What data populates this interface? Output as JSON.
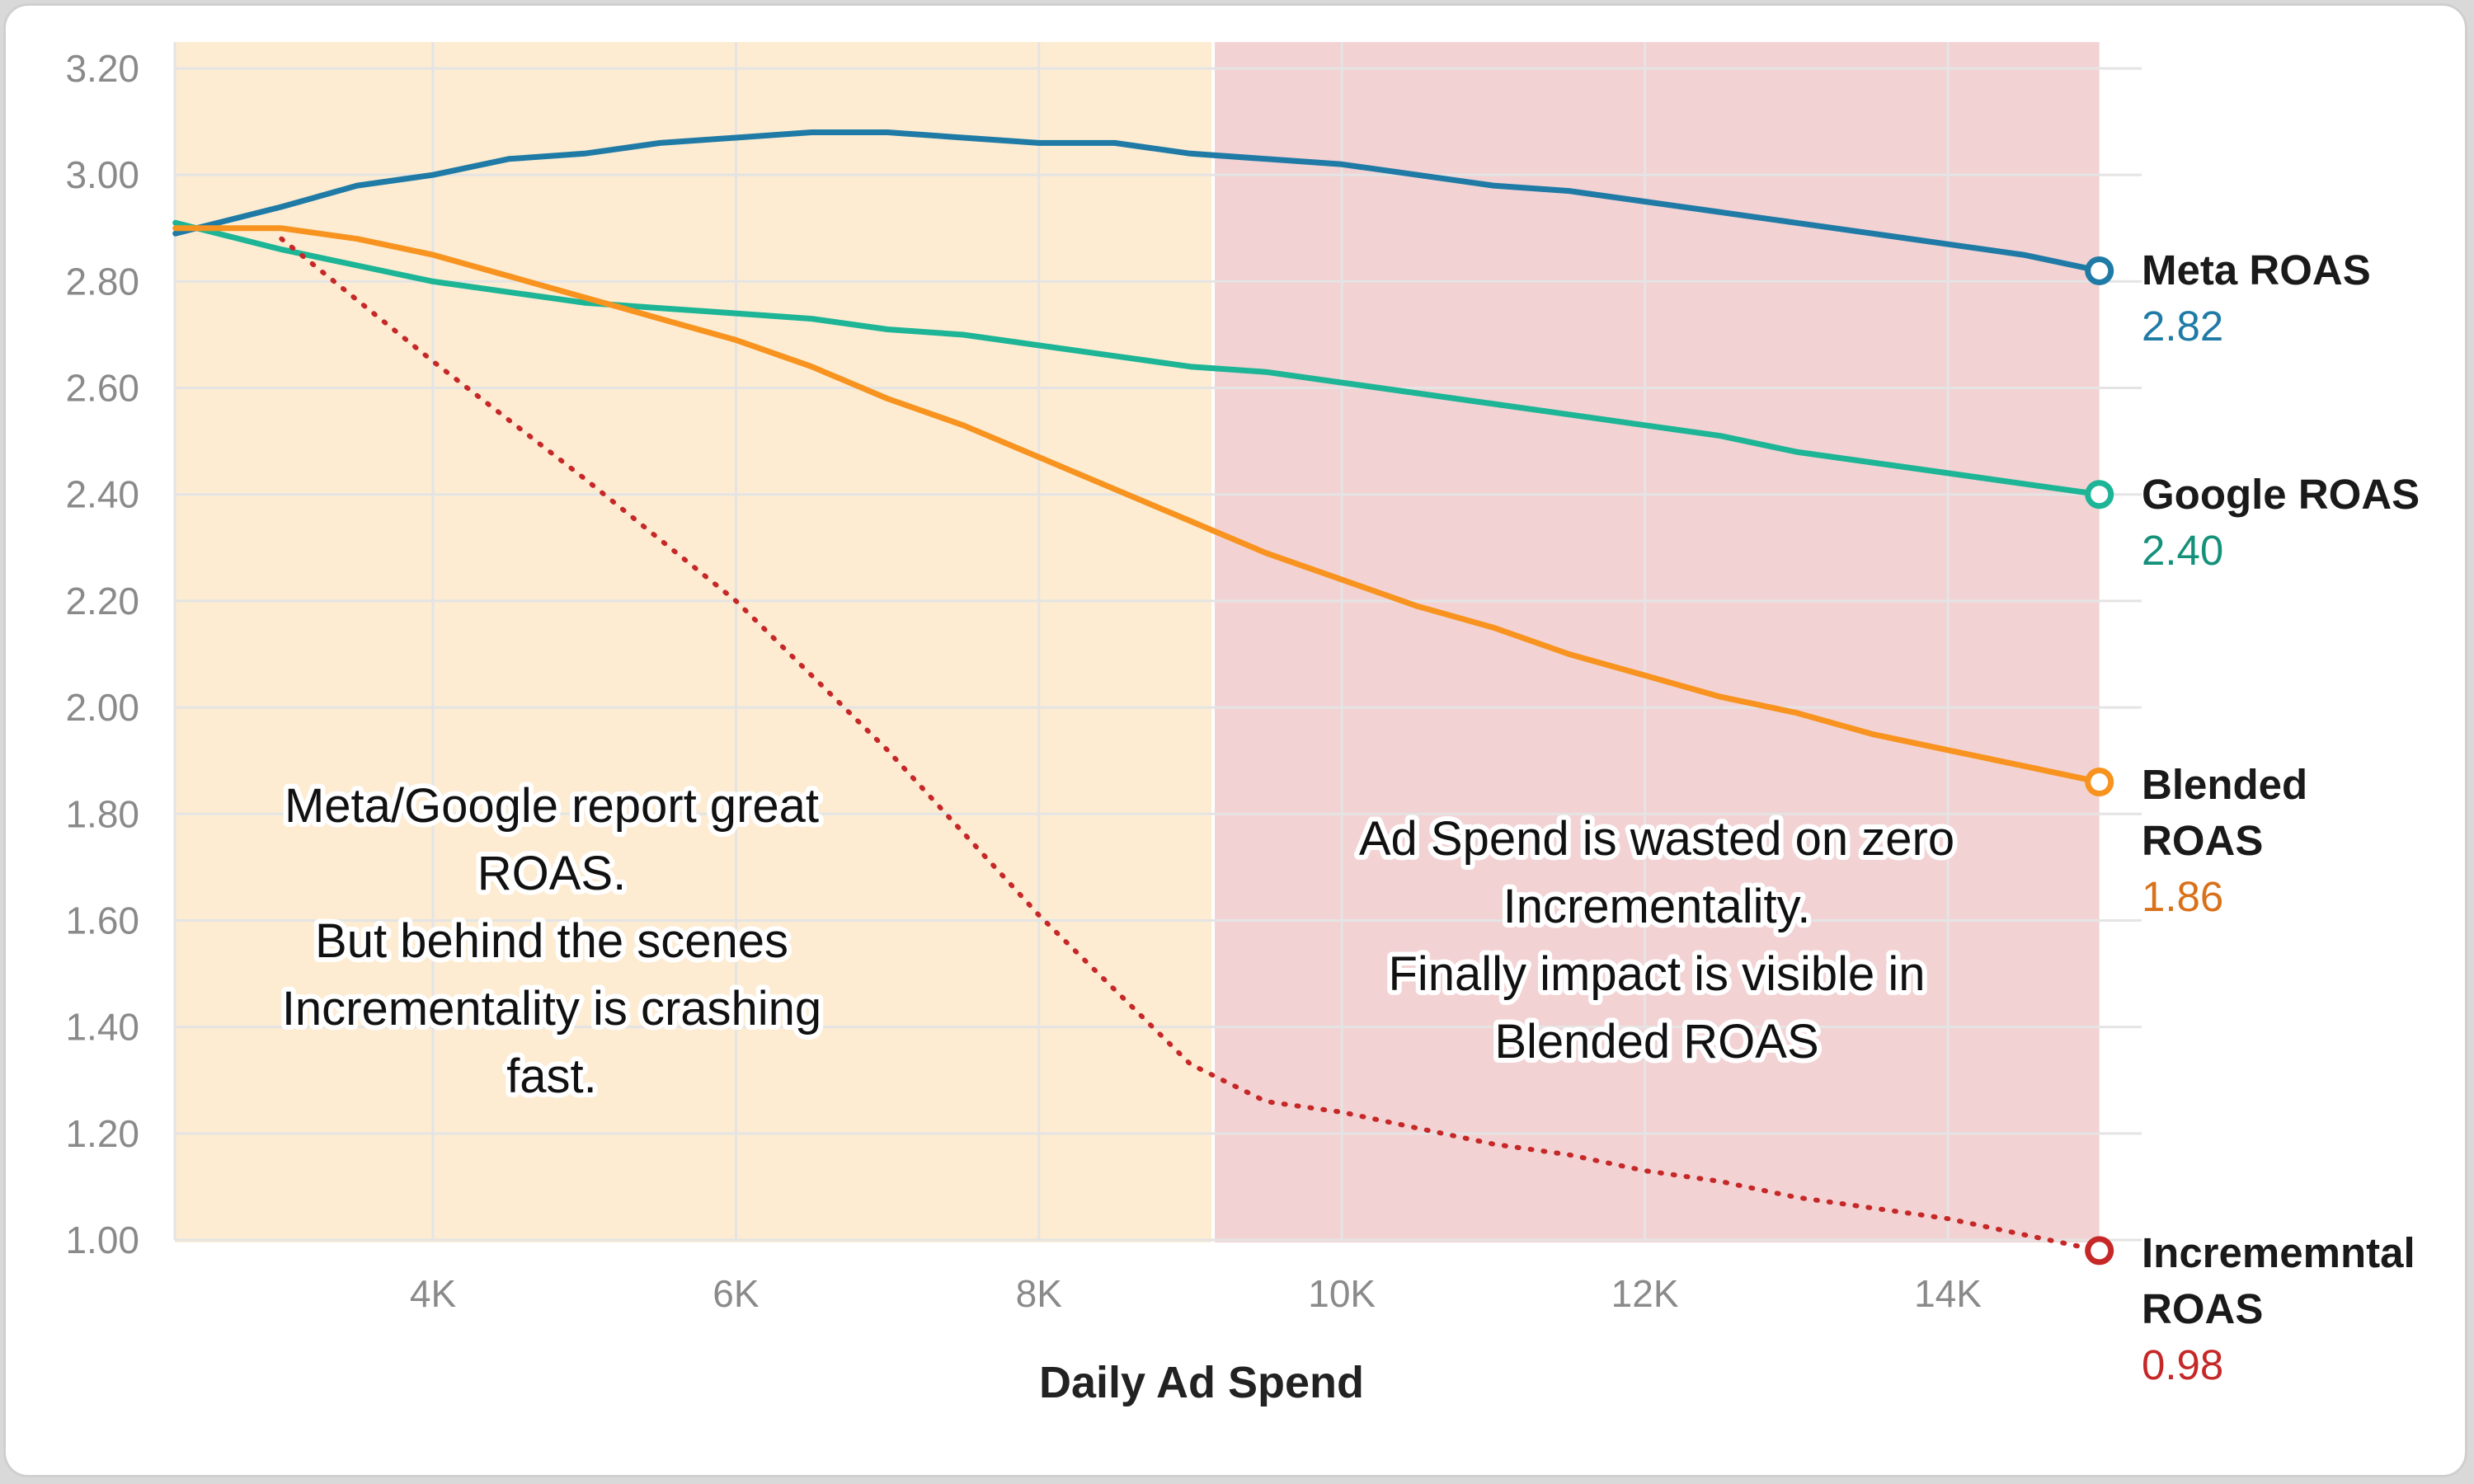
{
  "chart_data": {
    "type": "line",
    "title": "",
    "xlabel": "Daily Ad Spend",
    "ylabel": "",
    "xlim": [
      2100,
      15650
    ],
    "ylim": [
      1.0,
      3.2
    ],
    "yticks": [
      "1.00",
      "1.20",
      "1.40",
      "1.60",
      "1.80",
      "2.00",
      "2.20",
      "2.40",
      "2.60",
      "2.80",
      "3.00",
      "3.20"
    ],
    "ytick_values": [
      1.0,
      1.2,
      1.4,
      1.6,
      1.8,
      2.0,
      2.2,
      2.4,
      2.6,
      2.8,
      3.0,
      3.2
    ],
    "xticks": [
      "4K",
      "6K",
      "8K",
      "10K",
      "12K",
      "14K"
    ],
    "xtick_values": [
      4000,
      6000,
      8000,
      10000,
      12000,
      14000
    ],
    "grid": true,
    "regions": [
      {
        "name": "safe-zone",
        "x_from": 2100,
        "x_to": 9150,
        "color": "#fdecd2"
      },
      {
        "name": "waste-zone",
        "x_from": 9150,
        "x_to": 15000,
        "color": "#f3d2d3"
      }
    ],
    "series": [
      {
        "key": "meta",
        "name_lines": [
          "Meta ROAS"
        ],
        "end_label": "2.82",
        "color": "#1f7ba6",
        "value_color": "#1f7ba6",
        "dash": "solid",
        "x": [
          2300,
          3000,
          3500,
          4000,
          4500,
          5000,
          5500,
          6000,
          6500,
          7000,
          7500,
          8000,
          8500,
          9000,
          9500,
          10000,
          10500,
          11000,
          11500,
          12000,
          12500,
          13000,
          13500,
          14000,
          14500,
          15000
        ],
        "y": [
          2.89,
          2.94,
          2.98,
          3.0,
          3.03,
          3.04,
          3.06,
          3.07,
          3.08,
          3.08,
          3.07,
          3.06,
          3.06,
          3.04,
          3.03,
          3.02,
          3.0,
          2.98,
          2.97,
          2.95,
          2.93,
          2.91,
          2.89,
          2.87,
          2.85,
          2.82
        ]
      },
      {
        "key": "google",
        "name_lines": [
          "Google ROAS"
        ],
        "end_label": "2.40",
        "color": "#1db596",
        "value_color": "#14917a",
        "dash": "solid",
        "x": [
          2300,
          3000,
          3500,
          4000,
          4500,
          5000,
          5500,
          6000,
          6500,
          7000,
          7500,
          8000,
          8500,
          9000,
          9500,
          10000,
          10500,
          11000,
          11500,
          12000,
          12500,
          13000,
          13500,
          14000,
          14500,
          15000
        ],
        "y": [
          2.91,
          2.86,
          2.83,
          2.8,
          2.78,
          2.76,
          2.75,
          2.74,
          2.73,
          2.71,
          2.7,
          2.68,
          2.66,
          2.64,
          2.63,
          2.61,
          2.59,
          2.57,
          2.55,
          2.53,
          2.51,
          2.48,
          2.46,
          2.44,
          2.42,
          2.4
        ]
      },
      {
        "key": "blended",
        "name_lines": [
          "Blended",
          "ROAS"
        ],
        "end_label": "1.86",
        "color": "#f7931e",
        "value_color": "#d9711a",
        "dash": "solid",
        "x": [
          2300,
          3000,
          3500,
          4000,
          4500,
          5000,
          5500,
          6000,
          6500,
          7000,
          7500,
          8000,
          8500,
          9000,
          9500,
          10000,
          10500,
          11000,
          11500,
          12000,
          12500,
          13000,
          13500,
          14000,
          14500,
          15000
        ],
        "y": [
          2.9,
          2.9,
          2.88,
          2.85,
          2.81,
          2.77,
          2.73,
          2.69,
          2.64,
          2.58,
          2.53,
          2.47,
          2.41,
          2.35,
          2.29,
          2.24,
          2.19,
          2.15,
          2.1,
          2.06,
          2.02,
          1.99,
          1.95,
          1.92,
          1.89,
          1.86
        ]
      },
      {
        "key": "incremental",
        "name_lines": [
          "Incrememntal",
          "ROAS"
        ],
        "end_label": "0.98",
        "color": "#c62828",
        "value_color": "#c62828",
        "dash": "dotted",
        "x": [
          3000,
          4000,
          5000,
          6000,
          7000,
          8000,
          9000,
          9500,
          10000,
          10500,
          11000,
          11500,
          12000,
          12500,
          13000,
          13500,
          14000,
          14500,
          15000
        ],
        "y": [
          2.88,
          2.65,
          2.43,
          2.2,
          1.92,
          1.61,
          1.33,
          1.26,
          1.24,
          1.21,
          1.18,
          1.16,
          1.13,
          1.11,
          1.08,
          1.06,
          1.04,
          1.01,
          0.98
        ]
      }
    ],
    "annotations": [
      {
        "key": "left",
        "lines": [
          "Meta/Google report great",
          "ROAS.",
          "But behind the scenes",
          "Incrementality is crashing",
          "fast."
        ]
      },
      {
        "key": "right",
        "lines": [
          "Ad Spend is wasted on zero",
          "Incrementality.",
          "Finally impact is visible in",
          "Blended ROAS"
        ]
      }
    ]
  }
}
